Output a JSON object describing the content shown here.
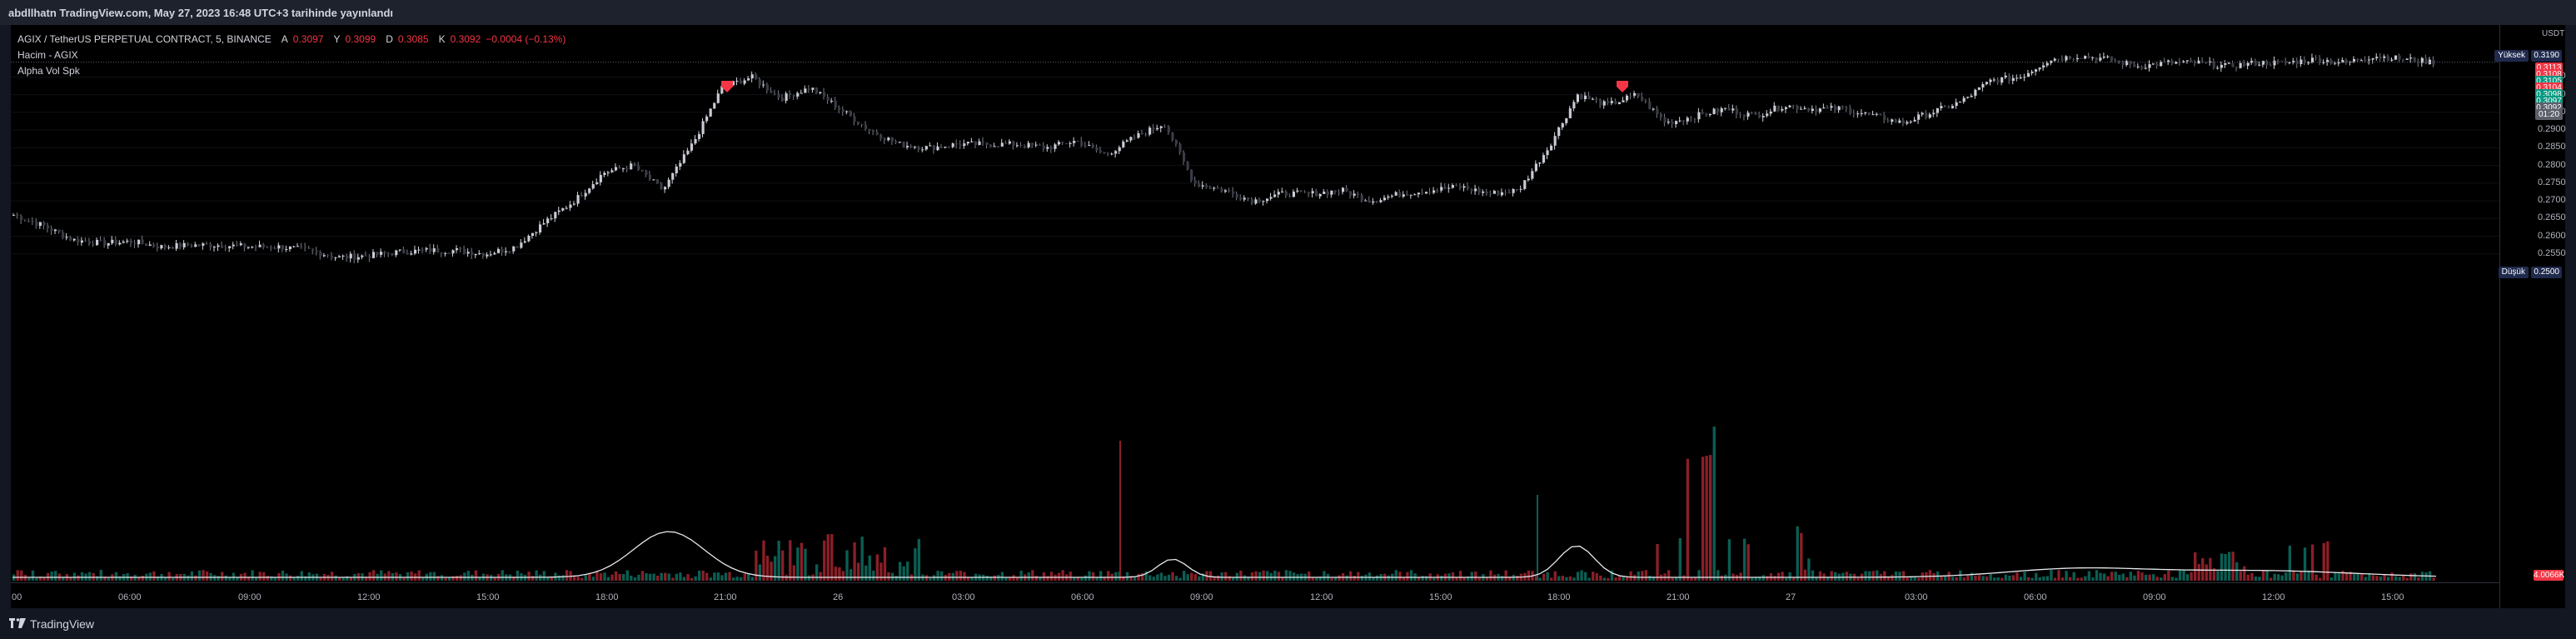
{
  "header": {
    "caption": "abdllhatn TradingView.com, May 27, 2023 16:48 UTC+3 tarihinde yayınlandı"
  },
  "legend": {
    "symbol": "AGIX / TetherUS PERPETUAL CONTRACT, 5, BINANCE",
    "open_label": "A",
    "open": "0.3097",
    "high_label": "Y",
    "high": "0.3099",
    "low_label": "D",
    "low": "0.3085",
    "close_label": "K",
    "close": "0.3092",
    "change": "−0.0004 (−0.13%)",
    "indicator_1": "Hacim - AGIX",
    "indicator_2": "Alpha Vol Spk"
  },
  "price_axis": {
    "currency": "USDT",
    "ticks": [
      "0.3050",
      "0.3000",
      "0.2950",
      "0.2900",
      "0.2850",
      "0.2800",
      "0.2750",
      "0.2700",
      "0.2650",
      "0.2600",
      "0.2550"
    ],
    "high_label": "Yüksek",
    "high_value": "0.3190",
    "low_label": "Düşük",
    "low_value": "0.2500",
    "badges": [
      {
        "text": "0.3113",
        "color": "#f23645"
      },
      {
        "text": "0.3108",
        "color": "#f23645"
      },
      {
        "text": "0.3105",
        "color": "#089981"
      },
      {
        "text": "0.3104",
        "color": "#f23645"
      },
      {
        "text": "0.3098",
        "color": "#089981"
      },
      {
        "text": "0.3097",
        "color": "#089981"
      },
      {
        "text": "0.3092",
        "color": "#5d606b"
      },
      {
        "text": "01:20",
        "color": "#5d606b"
      }
    ],
    "volume_badge": "4.0066K",
    "volume_badge_color": "#f23645"
  },
  "time_axis": {
    "labels": [
      "00",
      "06:00",
      "09:00",
      "12:00",
      "15:00",
      "18:00",
      "21:00",
      "26",
      "03:00",
      "06:00",
      "09:00",
      "12:00",
      "15:00",
      "18:00",
      "21:00",
      "27",
      "03:00",
      "06:00",
      "09:00",
      "12:00",
      "15:00",
      "18:00"
    ]
  },
  "footer": {
    "brand": "TradingView"
  },
  "chart_data": {
    "type": "candlestick",
    "symbol": "AGIX/USDT",
    "interval": "5",
    "ylim": [
      0.25,
      0.319
    ],
    "x": [
      "00",
      "06:00",
      "09:00",
      "12:00",
      "15:00",
      "18:00",
      "21:00",
      "26",
      "03:00",
      "06:00",
      "09:00",
      "12:00",
      "15:00",
      "18:00",
      "21:00",
      "27",
      "03:00",
      "06:00",
      "09:00",
      "12:00",
      "15:00",
      "18:00"
    ],
    "close_path": [
      0.266,
      0.263,
      0.259,
      0.258,
      0.2585,
      0.257,
      0.2575,
      0.2575,
      0.257,
      0.257,
      0.256,
      0.254,
      0.2545,
      0.2555,
      0.256,
      0.256,
      0.255,
      0.257,
      0.264,
      0.27,
      0.278,
      0.28,
      0.273,
      0.286,
      0.302,
      0.305,
      0.299,
      0.302,
      0.296,
      0.29,
      0.286,
      0.285,
      0.286,
      0.286,
      0.286,
      0.285,
      0.287,
      0.283,
      0.288,
      0.292,
      0.275,
      0.273,
      0.27,
      0.272,
      0.272,
      0.273,
      0.27,
      0.272,
      0.273,
      0.274,
      0.272,
      0.273,
      0.285,
      0.3,
      0.297,
      0.3,
      0.292,
      0.294,
      0.296,
      0.294,
      0.297,
      0.296,
      0.296,
      0.294,
      0.292,
      0.295,
      0.298,
      0.304,
      0.305,
      0.31,
      0.311,
      0.31,
      0.308,
      0.309,
      0.309,
      0.308,
      0.309,
      0.309,
      0.31,
      0.309,
      0.311,
      0.31,
      0.3092
    ],
    "markers": [
      {
        "type": "shield",
        "series": "Alpha Vol Spk",
        "near": "21:00 (25th)"
      },
      {
        "type": "shield",
        "series": "Alpha Vol Spk",
        "near": "21:00 (26th)"
      }
    ],
    "price_line": 0.3092,
    "grid": true,
    "series": [
      {
        "name": "Hacim - AGIX",
        "type": "volume"
      },
      {
        "name": "Alpha Vol Spk",
        "type": "line"
      }
    ]
  }
}
